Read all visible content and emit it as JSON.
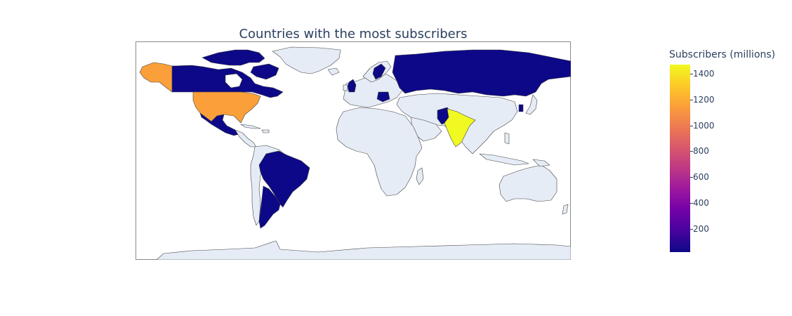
{
  "title": "Countries with the most subscribers",
  "colorbar": {
    "title": "Subscribers (millions)",
    "min": 20,
    "max": 1470,
    "ticks": [
      200,
      400,
      600,
      800,
      1000,
      1200,
      1400
    ],
    "colorscale": [
      "#0d0887",
      "#46039f",
      "#7201a8",
      "#9c179e",
      "#bd3786",
      "#d8576b",
      "#ed7953",
      "#fb9f3a",
      "#fdca26",
      "#f0f921"
    ]
  },
  "colors": {
    "land": "#e5ecf6",
    "border": "#444444",
    "frame": "#888888"
  },
  "chart_data": {
    "type": "choropleth",
    "title": "Countries with the most subscribers",
    "colorbar_title": "Subscribers (millions)",
    "range": [
      20,
      1470
    ],
    "regions": [
      {
        "name": "India",
        "value": 1400
      },
      {
        "name": "United States",
        "value": 1140
      },
      {
        "name": "Brazil",
        "value": 50
      },
      {
        "name": "Mexico",
        "value": 40
      },
      {
        "name": "Canada",
        "value": 30
      },
      {
        "name": "Russia",
        "value": 30
      },
      {
        "name": "Argentina",
        "value": 25
      },
      {
        "name": "Pakistan",
        "value": 25
      },
      {
        "name": "Germany",
        "value": 25
      },
      {
        "name": "United Kingdom",
        "value": 25
      },
      {
        "name": "Sweden",
        "value": 25
      },
      {
        "name": "South Korea",
        "value": 50
      }
    ]
  }
}
